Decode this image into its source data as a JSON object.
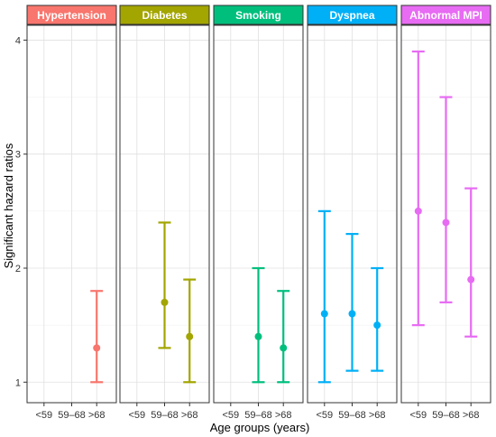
{
  "chart_data": {
    "type": "errorbar",
    "xlabel": "Age groups (years)",
    "ylabel": "Significant hazard ratios",
    "ylim": [
      1,
      4
    ],
    "yticks": [
      "1",
      "2",
      "3",
      "4"
    ],
    "categories": [
      "<59",
      "59–68",
      ">68"
    ],
    "grid": true,
    "panels": [
      {
        "name": "Hypertension",
        "color": "#F8766D",
        "points": [
          {
            "category": ">68",
            "value": 1.3,
            "lower": 1.0,
            "upper": 1.8
          }
        ]
      },
      {
        "name": "Diabetes",
        "color": "#A3A500",
        "points": [
          {
            "category": "59–68",
            "value": 1.7,
            "lower": 1.3,
            "upper": 2.4
          },
          {
            "category": ">68",
            "value": 1.4,
            "lower": 1.0,
            "upper": 1.9
          }
        ]
      },
      {
        "name": "Smoking",
        "color": "#00BF7D",
        "points": [
          {
            "category": "59–68",
            "value": 1.4,
            "lower": 1.0,
            "upper": 2.0
          },
          {
            "category": ">68",
            "value": 1.3,
            "lower": 1.0,
            "upper": 1.8
          }
        ]
      },
      {
        "name": "Dyspnea",
        "color": "#00B0F6",
        "points": [
          {
            "category": "<59",
            "value": 1.6,
            "lower": 1.0,
            "upper": 2.5
          },
          {
            "category": "59–68",
            "value": 1.6,
            "lower": 1.1,
            "upper": 2.3
          },
          {
            "category": ">68",
            "value": 1.5,
            "lower": 1.1,
            "upper": 2.0
          }
        ]
      },
      {
        "name": "Abnormal MPI",
        "color": "#E76BF3",
        "points": [
          {
            "category": "<59",
            "value": 2.5,
            "lower": 1.5,
            "upper": 3.9
          },
          {
            "category": "59–68",
            "value": 2.4,
            "lower": 1.7,
            "upper": 3.5
          },
          {
            "category": ">68",
            "value": 1.9,
            "lower": 1.4,
            "upper": 2.7
          }
        ]
      }
    ]
  }
}
